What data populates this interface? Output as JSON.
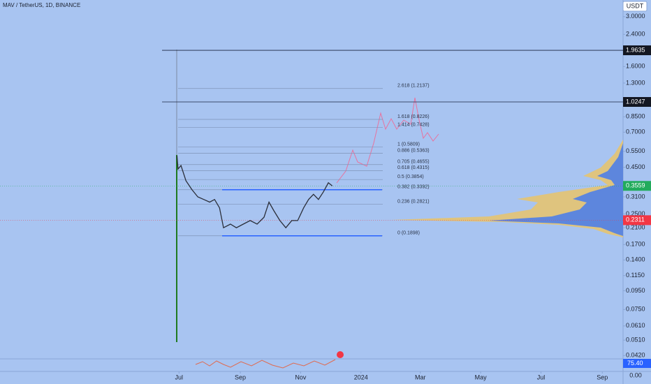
{
  "chart_data": {
    "type": "line",
    "title": "MAV / TetherUS, 1D, BINANCE",
    "currency_button": "USDT",
    "log_scale": true,
    "ylim": [
      0.041,
      3.7
    ],
    "xlim": [
      "2023-01-01",
      "2024-09-22"
    ],
    "yticks": [
      {
        "value": 3.0,
        "label": "3.0000"
      },
      {
        "value": 2.4,
        "label": "2.4000"
      },
      {
        "value": 1.6,
        "label": "1.6000"
      },
      {
        "value": 1.3,
        "label": "1.3000"
      },
      {
        "value": 0.85,
        "label": "0.8500"
      },
      {
        "value": 0.7,
        "label": "0.7000"
      },
      {
        "value": 0.55,
        "label": "0.5500"
      },
      {
        "value": 0.45,
        "label": "0.4500"
      },
      {
        "value": 0.31,
        "label": "0.3100"
      },
      {
        "value": 0.25,
        "label": "0.2500"
      },
      {
        "value": 0.21,
        "label": "0.2100"
      },
      {
        "value": 0.17,
        "label": "0.1700"
      },
      {
        "value": 0.14,
        "label": "0.1400"
      },
      {
        "value": 0.115,
        "label": "0.1150"
      },
      {
        "value": 0.095,
        "label": "0.0950"
      },
      {
        "value": 0.075,
        "label": "0.0750"
      },
      {
        "value": 0.061,
        "label": "0.0610"
      },
      {
        "value": 0.051,
        "label": "0.0510"
      },
      {
        "value": 0.042,
        "label": "0.0420"
      }
    ],
    "xticks": [
      {
        "value": "2023-07-01",
        "label": "Jul"
      },
      {
        "value": "2023-09-01",
        "label": "Sep"
      },
      {
        "value": "2023-11-01",
        "label": "Nov"
      },
      {
        "value": "2024-01-01",
        "label": "2024"
      },
      {
        "value": "2024-03-01",
        "label": "Mar"
      },
      {
        "value": "2024-05-01",
        "label": "May"
      },
      {
        "value": "2024-07-01",
        "label": "Jul"
      },
      {
        "value": "2024-09-01",
        "label": "Sep"
      }
    ],
    "price_tags": [
      {
        "value": 1.9635,
        "label": "1.9635",
        "color": "#131722"
      },
      {
        "value": 1.0247,
        "label": "1.0247",
        "color": "#131722"
      },
      {
        "value": 0.3559,
        "label": "0.3559",
        "color": "#22ab5c"
      },
      {
        "value": 0.2311,
        "label": "0.2311",
        "color": "#f23645"
      }
    ],
    "rsi_tag": {
      "value": 75.4,
      "label": "75.40",
      "color": "#2962ff"
    },
    "rsi_axis_label": "0.00",
    "fib_levels": [
      {
        "value": 1.2137,
        "label": "2.618 (1.2137)"
      },
      {
        "value": 0.8226,
        "label": "1.618 (0.8226)"
      },
      {
        "value": 0.7428,
        "label": "1.414 (0.7428)"
      },
      {
        "value": 0.5809,
        "label": "1 (0.5809)"
      },
      {
        "value": 0.5363,
        "label": "0.886 (0.5363)"
      },
      {
        "value": 0.4655,
        "label": "0.705 (0.4655)"
      },
      {
        "value": 0.4315,
        "label": "0.618 (0.4315)"
      },
      {
        "value": 0.3854,
        "label": "0.5 (0.3854)"
      },
      {
        "value": 0.3392,
        "label": "0.382 (0.3392)"
      },
      {
        "value": 0.2821,
        "label": "0.236 (0.2821)"
      },
      {
        "value": 0.1898,
        "label": "0 (0.1898)"
      }
    ],
    "series": [
      {
        "name": "MAV",
        "color": "#2a2e39",
        "x": [
          "2023-06-29",
          "2023-06-30",
          "2023-07-03",
          "2023-07-08",
          "2023-07-14",
          "2023-07-20",
          "2023-07-26",
          "2023-08-01",
          "2023-08-06",
          "2023-08-11",
          "2023-08-15",
          "2023-08-22",
          "2023-08-28",
          "2023-09-04",
          "2023-09-11",
          "2023-09-18",
          "2023-09-25",
          "2023-09-30",
          "2023-10-05",
          "2023-10-11",
          "2023-10-17",
          "2023-10-23",
          "2023-10-29",
          "2023-11-04",
          "2023-11-09",
          "2023-11-14",
          "2023-11-19",
          "2023-11-24",
          "2023-11-29",
          "2023-12-03"
        ],
        "values": [
          0.52,
          0.44,
          0.46,
          0.38,
          0.34,
          0.31,
          0.3,
          0.29,
          0.3,
          0.27,
          0.21,
          0.22,
          0.21,
          0.22,
          0.23,
          0.22,
          0.24,
          0.29,
          0.26,
          0.23,
          0.21,
          0.23,
          0.23,
          0.27,
          0.3,
          0.32,
          0.3,
          0.33,
          0.37,
          0.3559
        ]
      }
    ]
  }
}
